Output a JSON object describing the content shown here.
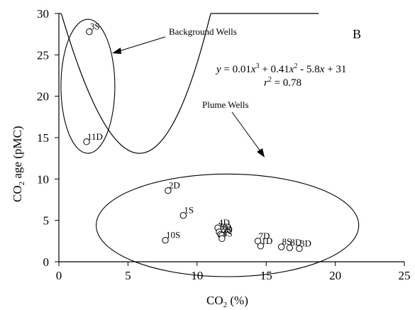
{
  "chart_data": {
    "type": "scatter",
    "panel_label": "B",
    "xlabel": {
      "base": "CO",
      "sub": "2",
      "rest": " (%)"
    },
    "ylabel": {
      "base": "CO",
      "sub": "2",
      "rest": " age (pMC)"
    },
    "xlim": [
      0,
      25
    ],
    "ylim": [
      0,
      30
    ],
    "x_ticks": [
      0,
      5,
      10,
      15,
      20,
      25
    ],
    "y_ticks": [
      0,
      5,
      10,
      15,
      20,
      25,
      30
    ],
    "x_tick_labels": [
      "0",
      "5",
      "10",
      "15",
      "20",
      "25"
    ],
    "y_tick_labels": [
      "0",
      "5",
      "10",
      "15",
      "20",
      "25",
      "30"
    ],
    "grid": false,
    "points": [
      {
        "label": "3S",
        "x": 2.2,
        "y": 27.8
      },
      {
        "label": "11D",
        "x": 2.0,
        "y": 14.5
      },
      {
        "label": "2D",
        "x": 7.9,
        "y": 8.6
      },
      {
        "label": "1S",
        "x": 9.0,
        "y": 5.6
      },
      {
        "label": "4D",
        "x": 11.5,
        "y": 4.1
      },
      {
        "label": "8D",
        "x": 11.6,
        "y": 3.6
      },
      {
        "label": "5D",
        "x": 11.7,
        "y": 3.3
      },
      {
        "label": "2S",
        "x": 11.8,
        "y": 3.2
      },
      {
        "label": "4S",
        "x": 11.8,
        "y": 2.8
      },
      {
        "label": "10S",
        "x": 7.7,
        "y": 2.6
      },
      {
        "label": "7D",
        "x": 14.4,
        "y": 2.5
      },
      {
        "label": "1D",
        "x": 14.6,
        "y": 1.9
      },
      {
        "label": "8S",
        "x": 16.1,
        "y": 1.8
      },
      {
        "label": "8D",
        "x": 16.7,
        "y": 1.7
      },
      {
        "label": "3D",
        "x": 17.4,
        "y": 1.6
      }
    ],
    "fit": {
      "coefficients": [
        0.01,
        0.41,
        -5.8,
        31
      ],
      "x_range": [
        0,
        18.8
      ],
      "equation": {
        "y": "y",
        "eq": " = 0.01",
        "x1": "x",
        "e3": "3",
        "p1": " + 0.41",
        "x2": "x",
        "e2": "2",
        "p2": " - 5.8",
        "x3": "x",
        "p3": " + 31"
      },
      "r2": {
        "r": "r",
        "sup": "2",
        "rest": " = 0.78"
      }
    },
    "groups": [
      {
        "label": "Background Wells",
        "center": [
          2.1,
          21.2
        ],
        "radius": [
          1.95,
          8.1
        ]
      },
      {
        "label": "Plume Wells",
        "center": [
          12.2,
          4.4
        ],
        "radius": [
          9.5,
          6.2
        ]
      }
    ]
  }
}
